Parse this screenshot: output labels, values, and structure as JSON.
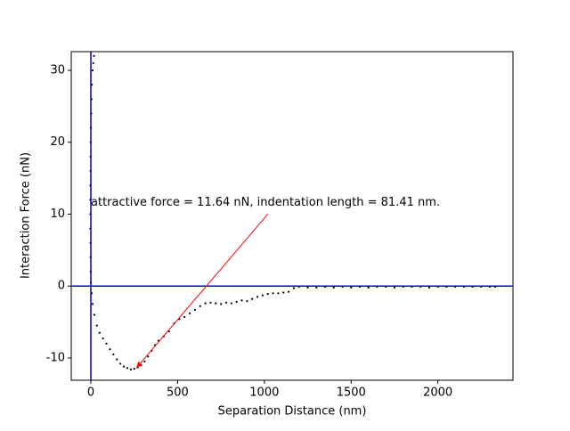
{
  "chart_data": {
    "type": "scatter",
    "xlabel": "Separation Distance (nm)",
    "ylabel": "Interaction Force (nN)",
    "xlim": [
      -113,
      2433
    ],
    "ylim": [
      -13.1,
      32.6
    ],
    "xticks": [
      0,
      500,
      1000,
      1500,
      2000
    ],
    "yticks": [
      -10,
      0,
      10,
      20,
      30
    ],
    "grid": false,
    "series": [
      {
        "color": "#000000",
        "x": [
          0,
          -1,
          -2,
          -2,
          -3,
          -3,
          -3,
          -3,
          -2,
          -2,
          -1,
          0,
          2,
          4,
          6,
          10,
          14,
          18,
          5,
          10,
          20,
          35,
          50,
          70,
          90,
          110,
          130,
          150,
          170,
          190,
          210,
          230,
          250,
          270,
          290,
          310,
          330,
          350,
          370,
          390,
          420,
          450,
          480,
          510,
          540,
          570,
          600,
          630,
          660,
          690,
          720,
          750,
          780,
          810,
          840,
          870,
          900,
          930,
          960,
          990,
          1020,
          1050,
          1080,
          1110,
          1140,
          1170,
          1200,
          1250,
          1300,
          1350,
          1400,
          1450,
          1500,
          1550,
          1600,
          1650,
          1700,
          1750,
          1800,
          1850,
          1900,
          1950,
          2000,
          2050,
          2100,
          2150,
          2200,
          2250,
          2300,
          2330
        ],
        "values": [
          0.5,
          2,
          4,
          6,
          8,
          10,
          12,
          14,
          16,
          18,
          20,
          22,
          24,
          26,
          28,
          30,
          31,
          32,
          -1,
          -2.5,
          -4,
          -5.5,
          -6.5,
          -7.3,
          -8,
          -8.8,
          -9.5,
          -10.2,
          -10.8,
          -11.2,
          -11.4,
          -11.6,
          -11.5,
          -11.3,
          -11,
          -10.5,
          -9.8,
          -9,
          -8.2,
          -7.6,
          -7,
          -6.3,
          -5.2,
          -4.6,
          -4.3,
          -3.8,
          -3.3,
          -2.8,
          -2.4,
          -2.3,
          -2.4,
          -2.5,
          -2.3,
          -2.4,
          -2.2,
          -2,
          -2.1,
          -1.8,
          -1.5,
          -1.3,
          -1.1,
          -1,
          -1,
          -0.9,
          -0.8,
          -0.3,
          -0.1,
          -0.2,
          -0.2,
          -0.1,
          -0.2,
          -0.1,
          -0.2,
          -0.1,
          -0.2,
          -0.1,
          -0.1,
          -0.2,
          -0.1,
          -0.1,
          -0.1,
          -0.2,
          -0.1,
          -0.1,
          -0.1,
          -0.1,
          -0.1,
          -0.1,
          -0.1,
          -0.1
        ]
      }
    ],
    "hlines": [
      0
    ],
    "vlines": [
      0
    ],
    "ref_color": "#0000cc",
    "annotations": [
      {
        "text": "attractive force = 11.64 nN, indentation length = 81.41 nm.",
        "x": 0,
        "y": 11.6,
        "arrow_from": [
          1020,
          10
        ],
        "arrow_to": [
          262,
          -11.4
        ],
        "color": "#ff0000"
      }
    ]
  }
}
